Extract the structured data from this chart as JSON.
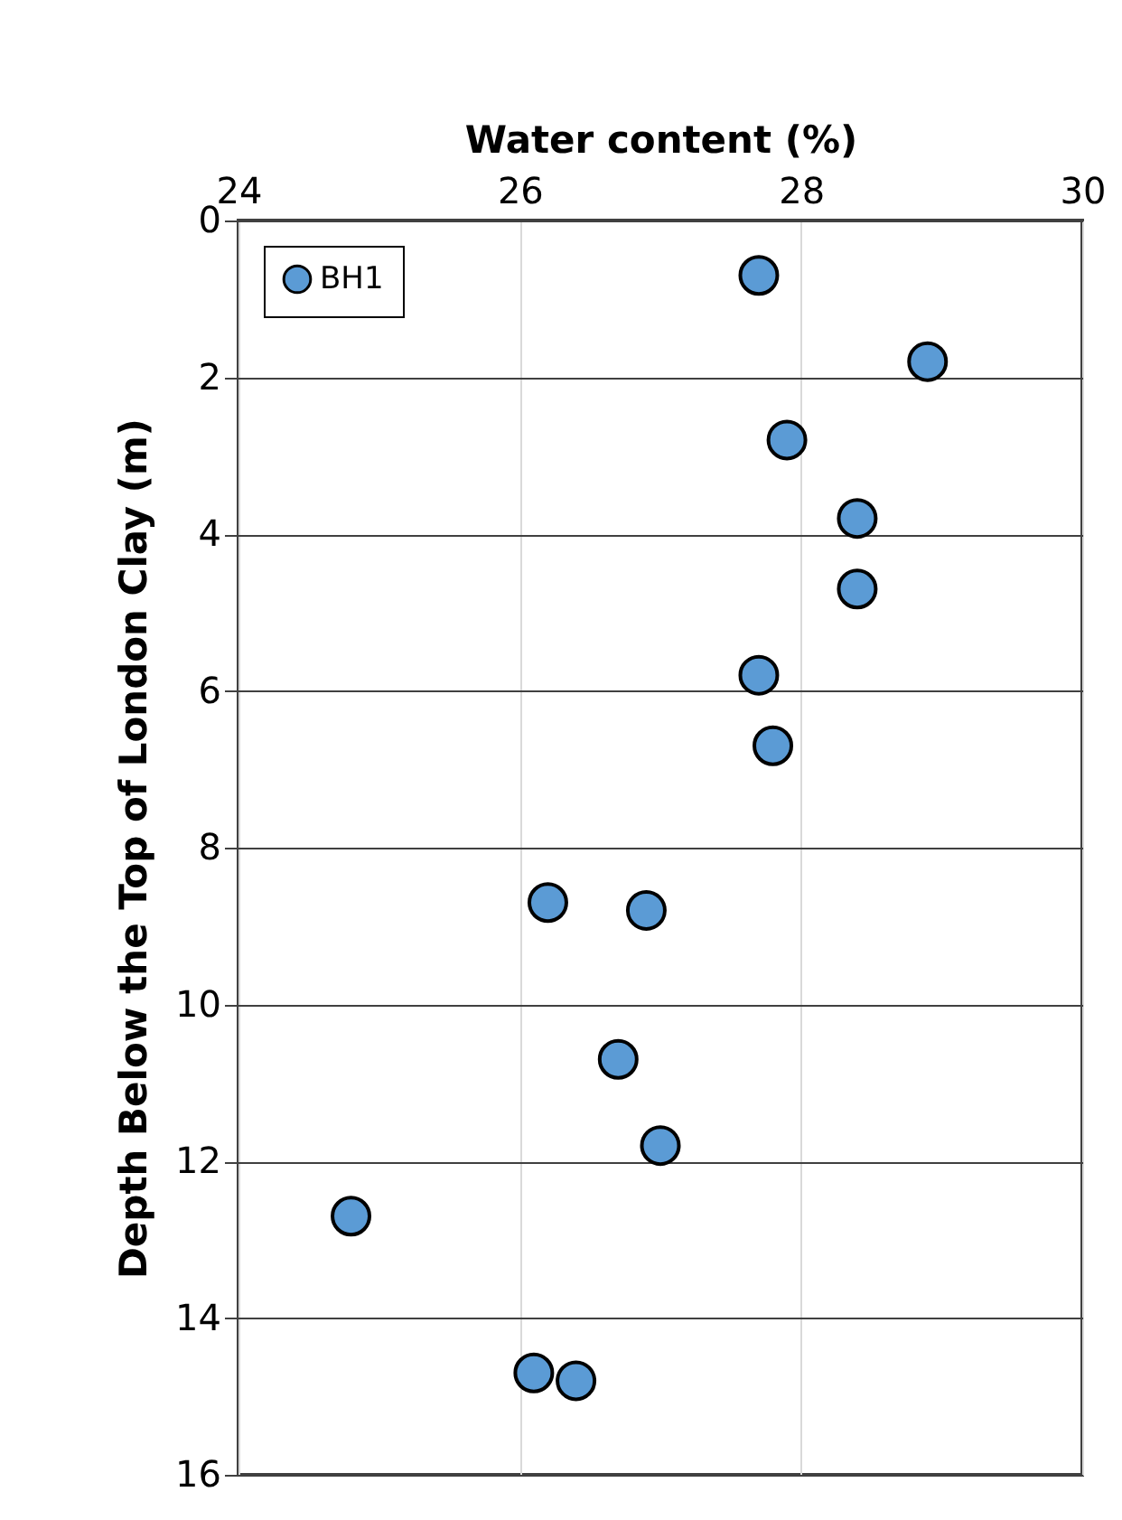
{
  "chart_data": {
    "type": "scatter",
    "xlabel": "Water content (%)",
    "ylabel": "Depth  Below the Top  of  London Clay (m)",
    "x": [
      27.7,
      28.9,
      27.9,
      28.4,
      28.4,
      27.7,
      27.8,
      26.2,
      26.9,
      26.7,
      27.0,
      24.8,
      26.1,
      26.4
    ],
    "series": [
      {
        "name": "BH1",
        "color": "#5b9bd5",
        "values": [
          0.7,
          1.8,
          2.8,
          3.8,
          4.7,
          5.8,
          6.7,
          8.7,
          8.8,
          10.7,
          11.8,
          12.7,
          14.7,
          14.8
        ]
      }
    ],
    "xlim": [
      24,
      30
    ],
    "xticks": [
      24,
      26,
      28,
      30
    ],
    "ylim": [
      16,
      0
    ],
    "yticks": [
      0,
      2,
      4,
      6,
      8,
      10,
      12,
      14,
      16
    ],
    "grid": true,
    "legend": "top left",
    "marker": "circle"
  }
}
